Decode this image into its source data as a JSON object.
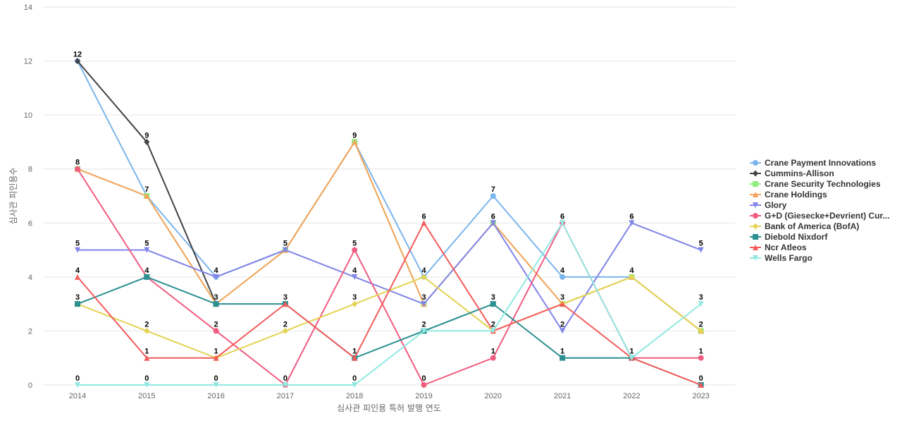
{
  "chart_data": {
    "type": "line",
    "title": "",
    "xlabel": "심사관 피인용 특허 발행 연도",
    "ylabel": "심사관 피인용수",
    "ylim": [
      0,
      14
    ],
    "yticks": [
      0,
      2,
      4,
      6,
      8,
      10,
      12,
      14
    ],
    "grid": true,
    "legend_position": "right",
    "x": [
      "2014",
      "2015",
      "2016",
      "2017",
      "2018",
      "2019",
      "2020",
      "2021",
      "2022",
      "2023"
    ],
    "series": [
      {
        "name": "Crane Payment Innovations",
        "color": "#7cb5ec",
        "marker": "circle",
        "values": [
          12,
          7,
          4,
          5,
          9,
          4,
          7,
          4,
          4,
          2
        ]
      },
      {
        "name": "Cummins-Allison",
        "color": "#434348",
        "marker": "diamond",
        "values": [
          12,
          9,
          3,
          null,
          null,
          null,
          null,
          null,
          null,
          null
        ]
      },
      {
        "name": "Crane Security Technologies",
        "color": "#90ed7d",
        "marker": "square",
        "values": [
          8,
          7,
          3,
          5,
          9,
          3,
          6,
          3,
          4,
          2
        ]
      },
      {
        "name": "Crane Holdings",
        "color": "#f7a35c",
        "marker": "triangle",
        "values": [
          8,
          7,
          3,
          5,
          9,
          3,
          6,
          3,
          4,
          2
        ]
      },
      {
        "name": "Glory",
        "color": "#8085e9",
        "marker": "triangle-down",
        "values": [
          5,
          5,
          4,
          5,
          4,
          3,
          6,
          2,
          6,
          5
        ]
      },
      {
        "name": "G+D (Giesecke+Devrient) Cur...",
        "color": "#f15c80",
        "marker": "circle",
        "values": [
          8,
          4,
          2,
          0,
          5,
          0,
          1,
          6,
          1,
          1
        ]
      },
      {
        "name": "Bank of America (BofA)",
        "color": "#e4d354",
        "marker": "diamond",
        "values": [
          3,
          2,
          1,
          2,
          3,
          4,
          2,
          3,
          4,
          2
        ]
      },
      {
        "name": "Diebold Nixdorf",
        "color": "#2b908f",
        "marker": "square",
        "values": [
          3,
          4,
          3,
          3,
          1,
          2,
          3,
          1,
          1,
          0
        ]
      },
      {
        "name": "Ncr Atleos",
        "color": "#f45b5b",
        "marker": "triangle",
        "values": [
          4,
          1,
          1,
          3,
          1,
          6,
          2,
          3,
          1,
          0
        ]
      },
      {
        "name": "Wells Fargo",
        "color": "#91e8e1",
        "marker": "triangle-down",
        "values": [
          0,
          0,
          0,
          0,
          0,
          2,
          2,
          6,
          1,
          3
        ]
      }
    ],
    "data_labels": [
      {
        "x": "2014",
        "values": [
          12,
          8,
          5,
          4,
          3,
          0
        ]
      },
      {
        "x": "2015",
        "values": [
          9,
          7,
          5,
          4,
          2,
          1,
          0
        ]
      },
      {
        "x": "2016",
        "values": [
          4,
          3,
          2,
          1,
          0
        ]
      },
      {
        "x": "2017",
        "values": [
          5,
          3,
          2,
          0
        ]
      },
      {
        "x": "2018",
        "values": [
          9,
          5,
          4,
          3,
          1,
          0
        ]
      },
      {
        "x": "2019",
        "values": [
          6,
          4,
          3,
          2,
          0
        ]
      },
      {
        "x": "2020",
        "values": [
          7,
          6,
          3,
          2,
          1
        ]
      },
      {
        "x": "2021",
        "values": [
          6,
          4,
          3,
          2,
          1
        ]
      },
      {
        "x": "2022",
        "values": [
          6,
          4,
          1
        ]
      },
      {
        "x": "2023",
        "values": [
          5,
          3,
          2,
          1,
          0
        ]
      }
    ]
  }
}
